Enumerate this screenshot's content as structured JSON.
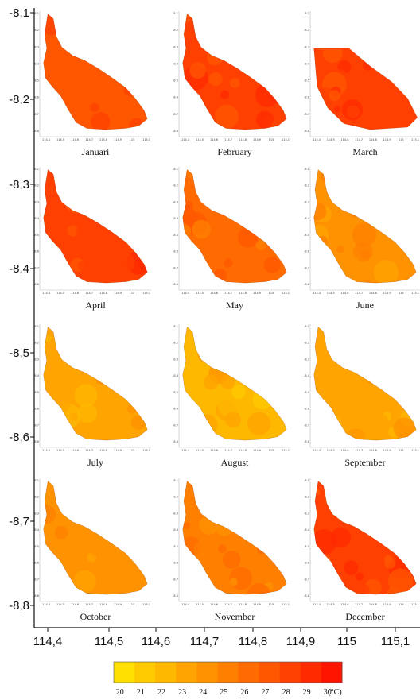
{
  "figure": {
    "y_ticks": [
      "-8,1",
      "-8,2",
      "-8,3",
      "-8,4",
      "-8,5",
      "-8,6",
      "-8,7",
      "-8,8"
    ],
    "x_ticks": [
      "114,4",
      "114,5",
      "114,6",
      "114,7",
      "114,8",
      "114,9",
      "115",
      "115,1"
    ]
  },
  "panels": [
    {
      "month": "Januari",
      "level": 7.5
    },
    {
      "month": "February",
      "level": 8.3
    },
    {
      "month": "March",
      "level": 8.8
    },
    {
      "month": "April",
      "level": 8.6
    },
    {
      "month": "May",
      "level": 6.3
    },
    {
      "month": "June",
      "level": 4.6
    },
    {
      "month": "July",
      "level": 3.5
    },
    {
      "month": "August",
      "level": 2.8
    },
    {
      "month": "September",
      "level": 3.5
    },
    {
      "month": "October",
      "level": 4.8
    },
    {
      "month": "November",
      "level": 5.8
    },
    {
      "month": "December",
      "level": 8.3
    }
  ],
  "mini_axis": {
    "x_labels": [
      "114.4",
      "114.5",
      "114.6",
      "114.7",
      "114.8",
      "114.9",
      "115",
      "115.1"
    ],
    "y_labels": [
      "-8.1",
      "-8.2",
      "-8.3",
      "-8.4",
      "-8.5",
      "-8.6",
      "-8.7",
      "-8.8"
    ]
  },
  "colorbar": {
    "ticks": [
      "20",
      "21",
      "22",
      "23",
      "24",
      "25",
      "26",
      "27",
      "28",
      "29",
      "30"
    ],
    "unit": "(°C)",
    "colors": [
      "#FFE000",
      "#FFCB00",
      "#FFB800",
      "#FFA400",
      "#FF9200",
      "#FF7F00",
      "#FF6B00",
      "#FF5700",
      "#FF4000",
      "#FF2A00",
      "#FF1400"
    ]
  }
}
